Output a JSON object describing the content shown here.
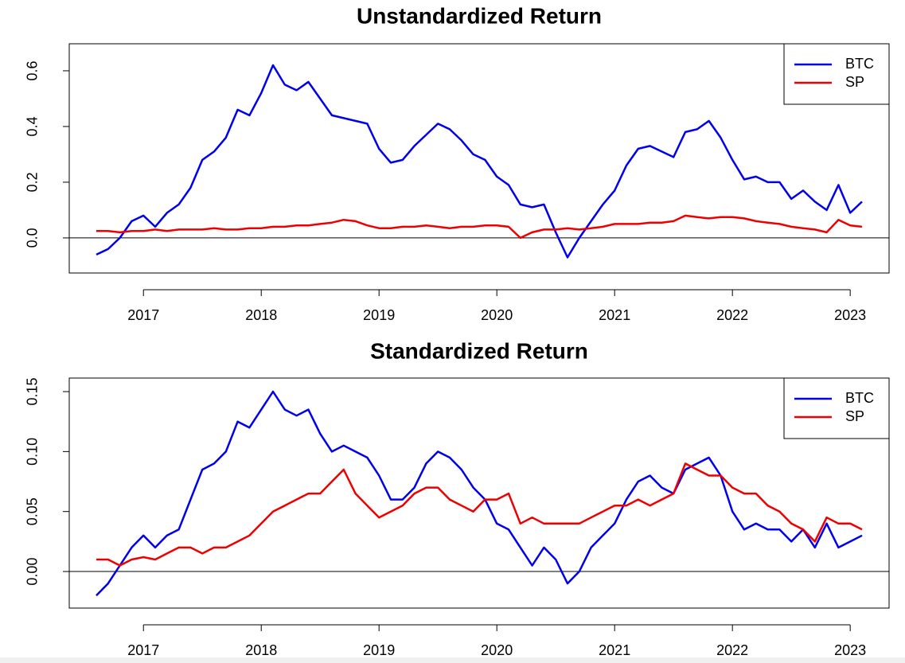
{
  "chart_data": [
    {
      "type": "line",
      "title": "Unstandardized Return",
      "x": [
        2016.6,
        2016.7,
        2016.8,
        2016.9,
        2017,
        2017.1,
        2017.2,
        2017.3,
        2017.4,
        2017.5,
        2017.6,
        2017.7,
        2017.8,
        2017.9,
        2018,
        2018.1,
        2018.2,
        2018.3,
        2018.4,
        2018.5,
        2018.6,
        2018.7,
        2018.8,
        2018.9,
        2019,
        2019.1,
        2019.2,
        2019.3,
        2019.4,
        2019.5,
        2019.6,
        2019.7,
        2019.8,
        2019.9,
        2020,
        2020.1,
        2020.2,
        2020.3,
        2020.4,
        2020.5,
        2020.6,
        2020.7,
        2020.8,
        2020.9,
        2021,
        2021.1,
        2021.2,
        2021.3,
        2021.4,
        2021.5,
        2021.6,
        2021.7,
        2021.8,
        2021.9,
        2022,
        2022.1,
        2022.2,
        2022.3,
        2022.4,
        2022.5,
        2022.6,
        2022.7,
        2022.8,
        2022.9,
        2023,
        2023.1
      ],
      "series": [
        {
          "name": "BTC",
          "color": "#0000ee",
          "values": [
            -0.06,
            -0.04,
            0.0,
            0.06,
            0.08,
            0.04,
            0.09,
            0.12,
            0.18,
            0.28,
            0.31,
            0.36,
            0.46,
            0.44,
            0.52,
            0.62,
            0.55,
            0.53,
            0.56,
            0.5,
            0.44,
            0.43,
            0.42,
            0.41,
            0.32,
            0.27,
            0.28,
            0.33,
            0.37,
            0.41,
            0.39,
            0.35,
            0.3,
            0.28,
            0.22,
            0.19,
            0.12,
            0.11,
            0.12,
            0.02,
            -0.07,
            0.0,
            0.06,
            0.12,
            0.17,
            0.26,
            0.32,
            0.33,
            0.31,
            0.29,
            0.38,
            0.39,
            0.42,
            0.36,
            0.28,
            0.21,
            0.22,
            0.2,
            0.2,
            0.14,
            0.17,
            0.13,
            0.1,
            0.19,
            0.09,
            0.13
          ]
        },
        {
          "name": "SP",
          "color": "#ee0000",
          "values": [
            0.025,
            0.025,
            0.02,
            0.025,
            0.025,
            0.03,
            0.025,
            0.03,
            0.03,
            0.03,
            0.035,
            0.03,
            0.03,
            0.035,
            0.035,
            0.04,
            0.04,
            0.045,
            0.045,
            0.05,
            0.055,
            0.065,
            0.06,
            0.045,
            0.035,
            0.035,
            0.04,
            0.04,
            0.045,
            0.04,
            0.035,
            0.04,
            0.04,
            0.045,
            0.045,
            0.04,
            0.0,
            0.02,
            0.03,
            0.03,
            0.035,
            0.03,
            0.035,
            0.04,
            0.05,
            0.05,
            0.05,
            0.055,
            0.055,
            0.06,
            0.08,
            0.075,
            0.07,
            0.075,
            0.075,
            0.07,
            0.06,
            0.055,
            0.05,
            0.04,
            0.035,
            0.03,
            0.02,
            0.065,
            0.045,
            0.04
          ]
        }
      ],
      "xlim": [
        2016.37,
        2023.33
      ],
      "xticks": [
        2017,
        2018,
        2019,
        2020,
        2021,
        2022,
        2023
      ],
      "ylim": [
        -0.126,
        0.697
      ],
      "yticks": [
        {
          "value": 0,
          "label": "0.0"
        },
        0.2,
        0.4,
        0.6
      ],
      "hline": 0,
      "legend": "topright"
    },
    {
      "type": "line",
      "title": "Standardized Return",
      "x": [
        2016.6,
        2016.7,
        2016.8,
        2016.9,
        2017,
        2017.1,
        2017.2,
        2017.3,
        2017.4,
        2017.5,
        2017.6,
        2017.7,
        2017.8,
        2017.9,
        2018,
        2018.1,
        2018.2,
        2018.3,
        2018.4,
        2018.5,
        2018.6,
        2018.7,
        2018.8,
        2018.9,
        2019,
        2019.1,
        2019.2,
        2019.3,
        2019.4,
        2019.5,
        2019.6,
        2019.7,
        2019.8,
        2019.9,
        2020,
        2020.1,
        2020.2,
        2020.3,
        2020.4,
        2020.5,
        2020.6,
        2020.7,
        2020.8,
        2020.9,
        2021,
        2021.1,
        2021.2,
        2021.3,
        2021.4,
        2021.5,
        2021.6,
        2021.7,
        2021.8,
        2021.9,
        2022,
        2022.1,
        2022.2,
        2022.3,
        2022.4,
        2022.5,
        2022.6,
        2022.7,
        2022.8,
        2022.9,
        2023,
        2023.1
      ],
      "series": [
        {
          "name": "BTC",
          "color": "#0000ee",
          "values": [
            -0.02,
            -0.01,
            0.005,
            0.02,
            0.03,
            0.02,
            0.03,
            0.035,
            0.06,
            0.085,
            0.09,
            0.1,
            0.125,
            0.12,
            0.135,
            0.15,
            0.135,
            0.13,
            0.135,
            0.115,
            0.1,
            0.105,
            0.1,
            0.095,
            0.08,
            0.06,
            0.06,
            0.07,
            0.09,
            0.1,
            0.095,
            0.085,
            0.07,
            0.06,
            0.04,
            0.035,
            0.02,
            0.005,
            0.02,
            0.01,
            -0.01,
            0.0,
            0.02,
            0.03,
            0.04,
            0.06,
            0.075,
            0.08,
            0.07,
            0.065,
            0.085,
            0.09,
            0.095,
            0.08,
            0.05,
            0.035,
            0.04,
            0.035,
            0.035,
            0.025,
            0.035,
            0.02,
            0.04,
            0.02,
            0.025,
            0.03
          ]
        },
        {
          "name": "SP",
          "color": "#ee0000",
          "values": [
            0.01,
            0.01,
            0.005,
            0.01,
            0.012,
            0.01,
            0.015,
            0.02,
            0.02,
            0.015,
            0.02,
            0.02,
            0.025,
            0.03,
            0.04,
            0.05,
            0.055,
            0.06,
            0.065,
            0.065,
            0.075,
            0.085,
            0.065,
            0.055,
            0.045,
            0.05,
            0.055,
            0.065,
            0.07,
            0.07,
            0.06,
            0.055,
            0.05,
            0.06,
            0.06,
            0.065,
            0.04,
            0.045,
            0.04,
            0.04,
            0.04,
            0.04,
            0.045,
            0.05,
            0.055,
            0.055,
            0.06,
            0.055,
            0.06,
            0.065,
            0.09,
            0.085,
            0.08,
            0.08,
            0.07,
            0.065,
            0.065,
            0.055,
            0.05,
            0.04,
            0.035,
            0.025,
            0.045,
            0.04,
            0.04,
            0.035
          ]
        }
      ],
      "xlim": [
        2016.37,
        2023.33
      ],
      "xticks": [
        2017,
        2018,
        2019,
        2020,
        2021,
        2022,
        2023
      ],
      "ylim": [
        -0.0305,
        0.1613
      ],
      "yticks": [
        {
          "value": 0,
          "label": "0.00"
        },
        {
          "value": 0.05,
          "label": "0.05"
        },
        {
          "value": 0.1,
          "label": "0.10"
        },
        {
          "value": 0.15,
          "label": "0.15"
        }
      ],
      "hline": 0,
      "legend": "topright"
    }
  ]
}
